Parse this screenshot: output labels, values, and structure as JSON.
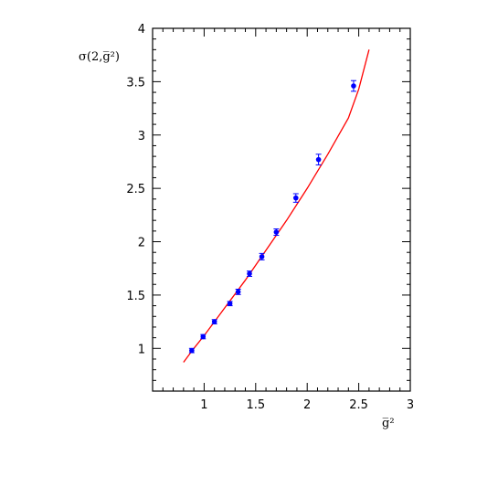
{
  "chart_data": {
    "type": "scatter",
    "title": "",
    "xlabel": "g̅²",
    "ylabel": "σ(2,g̅²)",
    "xlim": [
      0.5,
      3
    ],
    "ylim": [
      0.6,
      4
    ],
    "grid": false,
    "x_ticks": [
      1,
      1.5,
      2,
      2.5,
      3
    ],
    "x_tick_labels": [
      "1",
      "1.5",
      "2",
      "2.5",
      "3"
    ],
    "y_ticks": [
      1,
      1.5,
      2,
      2.5,
      3,
      3.5,
      4
    ],
    "y_tick_labels": [
      "1",
      "1.5",
      "2",
      "2.5",
      "3",
      "3.5",
      "4"
    ],
    "series": [
      {
        "type": "errorbar",
        "color": "#0000ff",
        "points": [
          {
            "x": 0.88,
            "y": 0.98,
            "err": 0.02
          },
          {
            "x": 0.99,
            "y": 1.11,
            "err": 0.02
          },
          {
            "x": 1.1,
            "y": 1.25,
            "err": 0.02
          },
          {
            "x": 1.25,
            "y": 1.42,
            "err": 0.02
          },
          {
            "x": 1.33,
            "y": 1.53,
            "err": 0.025
          },
          {
            "x": 1.44,
            "y": 1.7,
            "err": 0.025
          },
          {
            "x": 1.56,
            "y": 1.86,
            "err": 0.03
          },
          {
            "x": 1.7,
            "y": 2.09,
            "err": 0.03
          },
          {
            "x": 1.89,
            "y": 2.41,
            "err": 0.04
          },
          {
            "x": 2.11,
            "y": 2.77,
            "err": 0.05
          },
          {
            "x": 2.45,
            "y": 3.46,
            "err": 0.05
          }
        ]
      },
      {
        "type": "line",
        "color": "#ff0000",
        "x": [
          0.8,
          0.9,
          1.0,
          1.1,
          1.2,
          1.3,
          1.4,
          1.5,
          1.6,
          1.7,
          1.8,
          1.9,
          2.0,
          2.1,
          2.2,
          2.3,
          2.4,
          2.5,
          2.6
        ],
        "y": [
          0.87,
          1.0,
          1.12,
          1.25,
          1.38,
          1.51,
          1.64,
          1.78,
          1.92,
          2.06,
          2.2,
          2.35,
          2.5,
          2.66,
          2.82,
          2.99,
          3.16,
          3.43,
          3.8
        ]
      }
    ]
  }
}
